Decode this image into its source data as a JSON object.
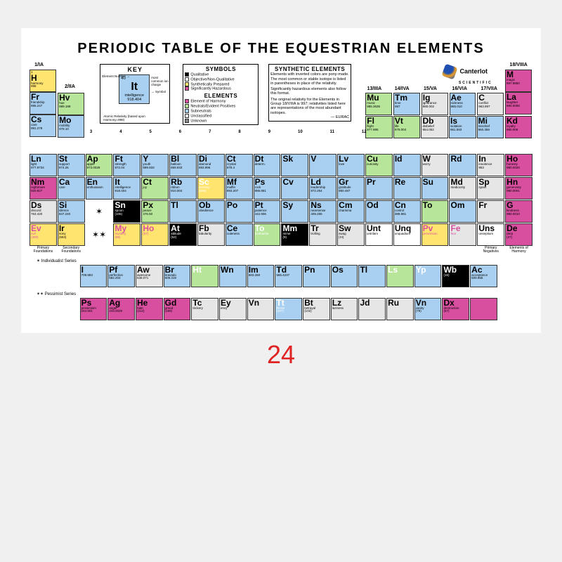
{
  "title": "PERIODIC TABLE OF THE EQUESTRIAN ELEMENTS",
  "brand": {
    "name": "Canterlot",
    "sub": "SCIENTIFIC"
  },
  "page_number": "24",
  "colors": {
    "qualitative": "#000000",
    "nonqual": "#ffffff",
    "synthetic": "#ffe570",
    "hazard": "#d94fa0",
    "harmony": "#d94fa0",
    "pos": "#b7e59a",
    "sub": "#a9d0f0",
    "uncl": "#e6e6e6",
    "unk": "#888888"
  },
  "group_labels": {
    "g1": "1/IA",
    "g2": "2/IIA",
    "g13": "13/IIIA",
    "g14": "14/IVA",
    "g15": "15/VA",
    "g16": "16/VIA",
    "g17": "17/VIIA",
    "g18": "18/VIIIA",
    "g3": "3",
    "g4": "4",
    "g5": "5",
    "g6": "6",
    "g7": "7",
    "g8": "8",
    "g9": "9",
    "g10": "10",
    "g11": "11",
    "g12": "12"
  },
  "key": {
    "title": "KEY",
    "cell": {
      "num": "40",
      "sym": "It",
      "name": "intelligence",
      "wt": "918.404"
    },
    "notes_top": "most common ion charge",
    "notes_right": "→ Symbol",
    "notes_left": "Element Number →",
    "notes_bottom": "Atomic Relativity (based upon Harmony=998)"
  },
  "legend_symbols": {
    "title": "SYMBOLS",
    "items": [
      {
        "c": "#000000",
        "t": "Qualitative"
      },
      {
        "c": "#ffffff",
        "t": "Objective/Non-Qualitative"
      },
      {
        "c": "#ffe570",
        "t": "Synthetically Prepared"
      },
      {
        "c": "#d94fa0",
        "t": "Significantly Hazardous"
      }
    ],
    "sub_title": "ELEMENTS",
    "sub_items": [
      {
        "c": "#d94fa0",
        "t": "Element of Harmony"
      },
      {
        "c": "#b7e59a",
        "t": "Neutrals/Evident Positives"
      },
      {
        "c": "#a9d0f0",
        "t": "Subneutrals"
      },
      {
        "c": "#e6e6e6",
        "t": "Unclassified"
      },
      {
        "c": "#888888",
        "t": "Unknown"
      }
    ]
  },
  "legend_synth": {
    "title": "SYNTHETIC ELEMENTS",
    "body1": "Elements with inverted colors are pony-made. The most common or stable isotope is listed in parentheses in place of the relativity.",
    "body2": "Significantly hazardous elements also follow this format.",
    "body3": "The original relativity for the Elements in Group 18/VIIIA is 997; relativities listed here are representations of the most abundant isotopes.",
    "sig": "— EURAC"
  },
  "foot_labels": {
    "c1": "Primary Foundations",
    "c2": "Secondary Foundations",
    "c17": "Primary Negatives",
    "c18": "Elements of Harmony"
  },
  "series_labels": {
    "a": "✶ Individualist Series",
    "b": "✶✶ Pessimist Series"
  },
  "top_cols": {
    "col1": [
      {
        "n": "1",
        "sy": "H",
        "nm": "harmony",
        "wt": "998",
        "bg": "#ffe570"
      },
      {
        "n": "",
        "sy": "Fr",
        "nm": "friendship",
        "wt": "995.247",
        "bg": "#a9d0f0"
      },
      {
        "n": "",
        "sy": "Cs",
        "nm": "care",
        "wt": "981.278",
        "bg": "#a9d0f0"
      }
    ],
    "col2": [
      {
        "n": "",
        "sy": "Hv",
        "nm": "hue",
        "wt": "989.189",
        "bg": "#b7e59a"
      },
      {
        "n": "",
        "sy": "Mo",
        "nm": "mobility",
        "wt": "978.10",
        "bg": "#a9d0f0"
      }
    ],
    "col13": [
      {
        "n": "",
        "sy": "Mu",
        "nm": "music",
        "wt": "985.3636",
        "bg": "#b7e59a"
      }
    ],
    "col14": [
      {
        "n": "",
        "sy": "Tm",
        "nm": "time",
        "wt": "987",
        "bg": "#a9d0f0"
      }
    ],
    "col15": [
      {
        "n": "",
        "sy": "Ig",
        "nm": "ignorance",
        "wt": "980.002",
        "bg": "#e6e6e6"
      }
    ],
    "col16": [
      {
        "n": "",
        "sy": "Ae",
        "nm": "sickness",
        "wt": "965.010",
        "bg": "#a9d0f0"
      }
    ],
    "col17": [
      {
        "n": "",
        "sy": "C",
        "nm": "conflict",
        "wt": "963.997",
        "bg": "#e6e6e6"
      }
    ],
    "col18": [
      {
        "n": "",
        "sy": "M",
        "nm": "magic",
        "wt": "997.9850",
        "bg": "#d94fa0"
      },
      {
        "n": "",
        "sy": "La",
        "nm": "laughter",
        "wt": "990.0008",
        "bg": "#d94fa0"
      }
    ],
    "row3_13_17": [
      {
        "n": "",
        "sy": "Fl",
        "nm": "flight",
        "wt": "977.986",
        "bg": "#b7e59a"
      },
      {
        "n": "",
        "sy": "Vt",
        "nm": "life",
        "wt": "979.004",
        "bg": "#b7e59a"
      },
      {
        "n": "",
        "sy": "Db",
        "nm": "disbelief",
        "wt": "954.052",
        "bg": "#e6e6e6"
      },
      {
        "n": "",
        "sy": "Is",
        "nm": "isolation",
        "wt": "961.593",
        "bg": "#a9d0f0"
      },
      {
        "n": "",
        "sy": "Mi",
        "nm": "mischief",
        "wt": "960.359",
        "bg": "#a9d0f0"
      }
    ],
    "row3_18": {
      "n": "",
      "sy": "Kd",
      "nm": "loyalty",
      "wt": "980.006",
      "bg": "#d94fa0"
    }
  },
  "main_rows": [
    [
      {
        "sy": "Ln",
        "nm": "light",
        "wt": "977.9734",
        "bg": "#a9d0f0"
      },
      {
        "sy": "St",
        "nm": "support",
        "wt": "974.26",
        "bg": "#a9d0f0"
      },
      {
        "sy": "Ap",
        "nm": "apple",
        "wt": "973.0028",
        "bg": "#b7e59a"
      },
      {
        "sy": "Ft",
        "nm": "strength",
        "wt": "972.04",
        "bg": "#a9d0f0"
      },
      {
        "sy": "Y",
        "nm": "youth",
        "wt": "899.933",
        "bg": "#a9d0f0"
      },
      {
        "sy": "Bl",
        "nm": "balloon",
        "wt": "869.933",
        "bg": "#a9d0f0"
      },
      {
        "sy": "Di",
        "nm": "diamond",
        "wt": "893.996",
        "bg": "#a9d0f0"
      },
      {
        "sy": "Ct",
        "nm": "crystal",
        "wt": "878.4",
        "bg": "#a9d0f0"
      },
      {
        "sy": "Dt",
        "nm": "determ.",
        "wt": "",
        "bg": "#a9d0f0"
      },
      {
        "sy": "Sk",
        "nm": "",
        "wt": "",
        "bg": "#a9d0f0"
      },
      {
        "sy": "V",
        "nm": "",
        "wt": "",
        "bg": "#a9d0f0"
      },
      {
        "sy": "Lv",
        "nm": "love",
        "wt": "",
        "bg": "#a9d0f0"
      },
      {
        "sy": "Cu",
        "nm": "curiosity",
        "wt": "",
        "bg": "#b7e59a"
      },
      {
        "sy": "Id",
        "nm": "",
        "wt": "",
        "bg": "#a9d0f0"
      },
      {
        "sy": "W",
        "nm": "worry",
        "wt": "",
        "bg": "#e6e6e6"
      },
      {
        "sy": "Rd",
        "nm": "",
        "wt": "",
        "bg": "#a9d0f0"
      },
      {
        "sy": "In",
        "nm": "insolence",
        "wt": "953",
        "bg": "#e6e6e6"
      },
      {
        "sy": "Ho",
        "nm": "honesty",
        "wt": "980.0020",
        "bg": "#d94fa0"
      }
    ],
    [
      {
        "sy": "Nm",
        "nm": "nightmare",
        "wt": "920.827",
        "bg": "#d94fa0"
      },
      {
        "sy": "Ca",
        "nm": "care",
        "wt": "",
        "bg": "#a9d0f0"
      },
      {
        "sy": "En",
        "nm": "enthusiasm",
        "wt": "",
        "bg": "#a9d0f0"
      },
      {
        "sy": "It",
        "nm": "intelligence",
        "wt": "918.404",
        "bg": "#a9d0f0"
      },
      {
        "sy": "Ct",
        "nm": "joy",
        "wt": "",
        "bg": "#b7e59a"
      },
      {
        "sy": "Rb",
        "nm": "ribbon",
        "wt": "910.004",
        "bg": "#a9d0f0"
      },
      {
        "sy": "Sc",
        "nm": "secrecy",
        "wt": "(898)",
        "bg": "#ffe570",
        "fg": "#ffffff"
      },
      {
        "sy": "Mf",
        "nm": "muffin",
        "wt": "893.207",
        "bg": "#a9d0f0"
      },
      {
        "sy": "Ps",
        "nm": "rock",
        "wt": "886.861",
        "bg": "#a9d0f0"
      },
      {
        "sy": "Cv",
        "nm": "",
        "wt": "",
        "bg": "#a9d0f0"
      },
      {
        "sy": "Ld",
        "nm": "leadership",
        "wt": "872.254",
        "bg": "#a9d0f0"
      },
      {
        "sy": "Gr",
        "nm": "gratitude",
        "wt": "860.487",
        "bg": "#a9d0f0"
      },
      {
        "sy": "Pr",
        "nm": "",
        "wt": "",
        "bg": "#a9d0f0"
      },
      {
        "sy": "Re",
        "nm": "",
        "wt": "",
        "bg": "#a9d0f0"
      },
      {
        "sy": "Su",
        "nm": "",
        "wt": "",
        "bg": "#a9d0f0"
      },
      {
        "sy": "Md",
        "nm": "mediocrity",
        "wt": "",
        "bg": "#e6e6e6"
      },
      {
        "sy": "Sp",
        "nm": "spam",
        "wt": "",
        "bg": "#e6e6e6"
      },
      {
        "sy": "Hn",
        "nm": "generosity",
        "wt": "980.0001",
        "bg": "#d94fa0"
      }
    ],
    [
      {
        "sy": "Ds",
        "nm": "discord",
        "wt": "763.420",
        "bg": "#e6e6e6"
      },
      {
        "sy": "Si",
        "nm": "silence",
        "wt": "847.240",
        "bg": "#a9d0f0"
      },
      {
        "sy": "✶",
        "star": true
      },
      {
        "sy": "Sn",
        "nm": "spoon",
        "wt": "(105)",
        "bg": "#000",
        "fg": "#fff"
      },
      {
        "sy": "Px",
        "nm": "peace",
        "wt": "476.50",
        "bg": "#b7e59a"
      },
      {
        "sy": "Tl",
        "nm": "",
        "wt": "",
        "bg": "#a9d0f0"
      },
      {
        "sy": "Ob",
        "nm": "obedience",
        "wt": "",
        "bg": "#a9d0f0"
      },
      {
        "sy": "Po",
        "nm": "",
        "wt": "",
        "bg": "#a9d0f0"
      },
      {
        "sy": "Pt",
        "nm": "patience",
        "wt": "442.906",
        "bg": "#a9d0f0"
      },
      {
        "sy": "Sy",
        "nm": "",
        "wt": "",
        "bg": "#a9d0f0"
      },
      {
        "sy": "Ns",
        "nm": "nearsense",
        "wt": "409.255",
        "bg": "#a9d0f0"
      },
      {
        "sy": "Cm",
        "nm": "charisma",
        "wt": "",
        "bg": "#a9d0f0"
      },
      {
        "sy": "Od",
        "nm": "",
        "wt": "",
        "bg": "#a9d0f0"
      },
      {
        "sy": "Cn",
        "nm": "control",
        "wt": "389.981",
        "bg": "#a9d0f0"
      },
      {
        "sy": "To",
        "nm": "",
        "wt": "",
        "bg": "#b7e59a"
      },
      {
        "sy": "Om",
        "nm": "",
        "wt": "",
        "bg": "#a9d0f0"
      },
      {
        "sy": "Fr",
        "nm": "",
        "wt": "",
        "bg": "#e6e6e6"
      },
      {
        "sy": "G",
        "nm": "kindness",
        "wt": "980.0010",
        "bg": "#d94fa0"
      }
    ],
    [
      {
        "sy": "Ev",
        "nm": "evil",
        "wt": "(300)",
        "bg": "#ffe570",
        "fg": "#d94fa0"
      },
      {
        "sy": "Ir",
        "nm": "irony",
        "wt": "(553)",
        "bg": "#ffe570"
      },
      {
        "sy": "✶✶",
        "star": true
      },
      {
        "sy": "My",
        "nm": "mystery",
        "wt": "(86)",
        "bg": "#ffe570",
        "fg": "#d94fa0"
      },
      {
        "sy": "Ho",
        "nm": "",
        "wt": "(67)",
        "bg": "#ffe570",
        "fg": "#d94fa0"
      },
      {
        "sy": "At",
        "nm": "attitude",
        "wt": "(52)",
        "bg": "#000",
        "fg": "#fff"
      },
      {
        "sy": "Fb",
        "nm": "tabularity",
        "wt": "",
        "bg": "#e6e6e6"
      },
      {
        "sy": "Ce",
        "nm": "cuteness",
        "wt": "",
        "bg": "#a9d0f0"
      },
      {
        "sy": "To",
        "nm": "toothache",
        "wt": "",
        "bg": "#b7e59a",
        "fg": "#ffffff"
      },
      {
        "sy": "Mm",
        "nm": "mime",
        "wt": "(9)",
        "bg": "#000",
        "fg": "#fff"
      },
      {
        "sy": "Tr",
        "nm": "trolling",
        "wt": "",
        "bg": "#e6e6e6"
      },
      {
        "sy": "Sw",
        "nm": "swag",
        "wt": "(XI)",
        "bg": "#e6e6e6"
      },
      {
        "sy": "Unt",
        "nm": "untrilam",
        "wt": "",
        "bg": "#fff"
      },
      {
        "sy": "Unq",
        "nm": "unquadium",
        "wt": "",
        "bg": "#fff"
      },
      {
        "sy": "Pv",
        "nm": "perversion",
        "wt": "",
        "bg": "#ffe570",
        "fg": "#d94fa0"
      },
      {
        "sy": "Fe",
        "nm": "fear",
        "wt": "",
        "bg": "#e6e6e6",
        "fg": "#d94fa0"
      },
      {
        "sy": "Uns",
        "nm": "unseptium",
        "wt": "",
        "bg": "#fff"
      },
      {
        "sy": "De",
        "nm": "derp",
        "wt": "(27)",
        "bg": "#d94fa0"
      }
    ]
  ],
  "series_a": [
    {
      "sy": "I",
      "nm": "",
      "wt": "709.983",
      "bg": "#a9d0f0"
    },
    {
      "sy": "Pf",
      "nm": "perfection",
      "wt": "682.204",
      "bg": "#a9d0f0"
    },
    {
      "sy": "Aw",
      "nm": "awesome",
      "wt": "638.071",
      "bg": "#e6e6e6"
    },
    {
      "sy": "Br",
      "nm": "bravado",
      "wt": "609.319",
      "bg": "#a9d0f0"
    },
    {
      "sy": "Ht",
      "nm": "",
      "wt": "",
      "bg": "#b7e59a",
      "fg": "#fff"
    },
    {
      "sy": "Wn",
      "nm": "",
      "wt": "",
      "bg": "#a9d0f0"
    },
    {
      "sy": "Im",
      "nm": "",
      "wt": "583.269",
      "bg": "#a9d0f0"
    },
    {
      "sy": "Td",
      "nm": "",
      "wt": "565.4237",
      "bg": "#a9d0f0"
    },
    {
      "sy": "Pn",
      "nm": "",
      "wt": "",
      "bg": "#a9d0f0"
    },
    {
      "sy": "Os",
      "nm": "",
      "wt": "",
      "bg": "#a9d0f0"
    },
    {
      "sy": "Tl",
      "nm": "",
      "wt": "",
      "bg": "#a9d0f0"
    },
    {
      "sy": "Ls",
      "nm": "",
      "wt": "",
      "bg": "#b7e59a",
      "fg": "#fff"
    },
    {
      "sy": "Yp",
      "nm": "",
      "wt": "",
      "bg": "#a9d0f0",
      "fg": "#fff"
    },
    {
      "sy": "Wb",
      "nm": "",
      "wt": "(16)",
      "bg": "#000",
      "fg": "#fff"
    },
    {
      "sy": "Ac",
      "nm": "acceptance",
      "wt": "509.955",
      "bg": "#a9d0f0"
    }
  ],
  "series_b": [
    {
      "sy": "Ps",
      "nm": "pessimism",
      "wt": "244.501",
      "bg": "#d94fa0"
    },
    {
      "sy": "Ag",
      "nm": "anger",
      "wt": "243.0029",
      "bg": "#d94fa0"
    },
    {
      "sy": "He",
      "nm": "hate",
      "wt": "(212)",
      "bg": "#d94fa0"
    },
    {
      "sy": "Gd",
      "nm": "greed",
      "wt": "(169)",
      "bg": "#d94fa0"
    },
    {
      "sy": "Tc",
      "nm": "trickery",
      "wt": "",
      "bg": "#e6e6e6"
    },
    {
      "sy": "Ey",
      "nm": "envy",
      "wt": "",
      "bg": "#e6e6e6"
    },
    {
      "sy": "Vn",
      "nm": "",
      "wt": "",
      "bg": "#e6e6e6"
    },
    {
      "sy": "Tt",
      "nm": "threat",
      "wt": "(107)",
      "bg": "#a9d0f0",
      "fg": "#fff"
    },
    {
      "sy": "Bt",
      "nm": "betrayal",
      "wt": "(102)",
      "bg": "#e6e6e6"
    },
    {
      "sy": "Lz",
      "nm": "laziness",
      "wt": "",
      "bg": "#e6e6e6"
    },
    {
      "sy": "Jd",
      "nm": "",
      "wt": "",
      "bg": "#e6e6e6"
    },
    {
      "sy": "Ru",
      "nm": "",
      "wt": "",
      "bg": "#e6e6e6"
    },
    {
      "sy": "Vn",
      "nm": "vanity",
      "wt": "(79)",
      "bg": "#a9d0f0"
    },
    {
      "sy": "Dx",
      "nm": "destruction",
      "wt": "(67)",
      "bg": "#d94fa0"
    },
    {
      "sy": "",
      "nm": "",
      "wt": "",
      "bg": "#d94fa0"
    }
  ]
}
